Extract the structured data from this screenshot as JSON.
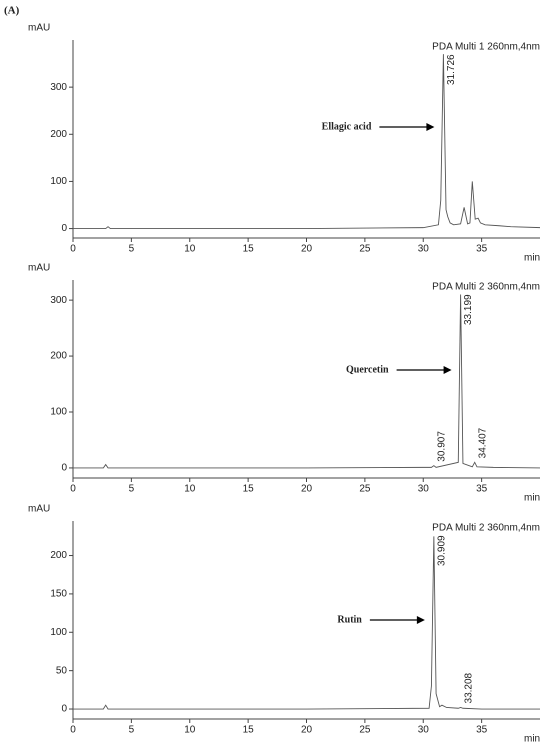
{
  "label": "(A)",
  "chart_data": [
    {
      "type": "line",
      "title": "PDA Multi 1 260nm,4nm",
      "y_label": "mAU",
      "x_label": "min",
      "annotation": "Ellagic acid",
      "color": "#555555",
      "x": [
        0,
        2.8,
        3.0,
        3.2,
        10,
        20,
        30,
        31.3,
        31.5,
        31.726,
        31.95,
        32.1,
        32.3,
        32.6,
        33.2,
        33.5,
        33.8,
        34.0,
        34.2,
        34.45,
        34.7,
        34.9,
        35.3,
        36.5,
        37.5,
        40
      ],
      "values": [
        0,
        0,
        4,
        0,
        0,
        0,
        2,
        8,
        60,
        370,
        40,
        25,
        12,
        8,
        10,
        45,
        10,
        12,
        100,
        20,
        22,
        12,
        8,
        6,
        4,
        2
      ],
      "peak_labels": [
        31.726
      ],
      "xlim": [
        0,
        40
      ],
      "xticks": [
        0,
        5,
        10,
        15,
        20,
        25,
        30,
        35
      ],
      "ylim": [
        -20,
        400
      ],
      "yticks": [
        0,
        100,
        200,
        300
      ]
    },
    {
      "type": "line",
      "title": "PDA Multi 2 360nm,4nm",
      "y_label": "mAU",
      "x_label": "min",
      "annotation": "Quercetin",
      "color": "#555555",
      "x": [
        0,
        2.6,
        2.8,
        3.0,
        10,
        20,
        30,
        30.7,
        30.907,
        31.1,
        33.0,
        33.199,
        33.4,
        34.2,
        34.407,
        34.6,
        36,
        40
      ],
      "values": [
        0,
        0,
        6,
        0,
        0,
        0,
        1,
        1,
        4,
        1,
        10,
        310,
        8,
        2,
        10,
        2,
        1,
        0
      ],
      "peak_labels": [
        30.907,
        33.199,
        34.407
      ],
      "xlim": [
        0,
        40
      ],
      "xticks": [
        0,
        5,
        10,
        15,
        20,
        25,
        30,
        35
      ],
      "ylim": [
        -18,
        336
      ],
      "yticks": [
        0,
        100,
        200,
        300
      ]
    },
    {
      "type": "line",
      "title": "PDA Multi 2 360nm,4nm",
      "y_label": "mAU",
      "x_label": "min",
      "annotation": "Rutin",
      "color": "#555555",
      "x": [
        0,
        2.6,
        2.8,
        3.0,
        10,
        20,
        30.5,
        30.7,
        30.909,
        31.1,
        31.4,
        31.6,
        32,
        33.0,
        33.208,
        33.4,
        35,
        40
      ],
      "values": [
        0,
        0,
        5,
        0,
        0,
        0,
        1,
        30,
        225,
        20,
        3,
        5,
        2,
        1,
        2,
        1,
        0,
        0
      ],
      "peak_labels": [
        30.909,
        33.208
      ],
      "xlim": [
        0,
        40
      ],
      "xticks": [
        0,
        5,
        10,
        15,
        20,
        25,
        30,
        35
      ],
      "ylim": [
        -13,
        245
      ],
      "yticks": [
        0,
        50,
        100,
        150,
        200
      ]
    }
  ]
}
